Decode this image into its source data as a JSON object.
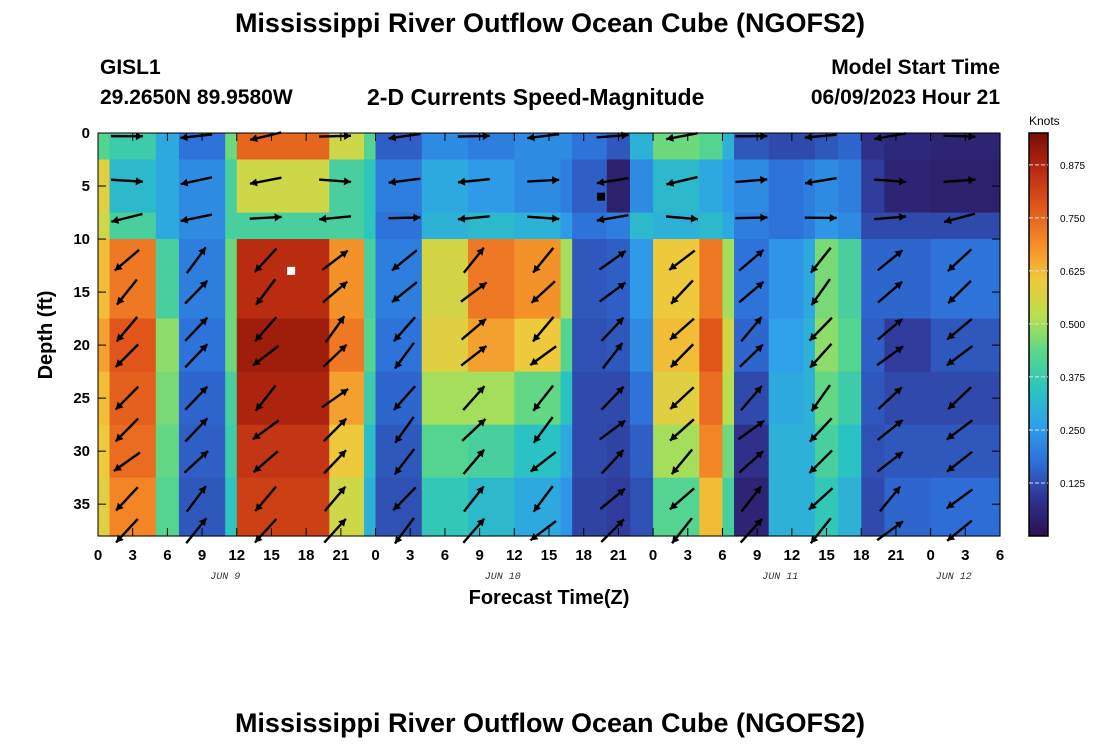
{
  "header": {
    "title": "Mississippi River Outflow Ocean Cube (NGOFS2)",
    "station": "GISL1",
    "coords": "29.2650N  89.9580W",
    "subtitle": "2-D Currents Speed-Magnitude",
    "model_start_label": "Model Start Time",
    "model_start_value": "06/09/2023 Hour 21"
  },
  "footer": {
    "title": "Mississippi River Outflow Ocean Cube (NGOFS2)"
  },
  "chart_data": {
    "type": "heatmap",
    "xlabel": "Forecast Time(Z)",
    "ylabel": "Depth (ft)",
    "x_tick_labels": [
      "0",
      "3",
      "6",
      "9",
      "12",
      "15",
      "18",
      "21",
      "0",
      "3",
      "6",
      "9",
      "12",
      "15",
      "18",
      "21",
      "0",
      "3",
      "6",
      "9",
      "12",
      "15",
      "18",
      "21",
      "0",
      "3",
      "6"
    ],
    "date_labels": [
      {
        "label": "JUN 9",
        "hour_index": 11
      },
      {
        "label": "JUN 10",
        "hour_index": 35
      },
      {
        "label": "JUN 11",
        "hour_index": 59
      },
      {
        "label": "JUN 12",
        "hour_index": 74
      }
    ],
    "x_range_hours": [
      0,
      78
    ],
    "y_tick_labels": [
      "0",
      "5",
      "10",
      "15",
      "20",
      "25",
      "30",
      "35"
    ],
    "ylim_ft": [
      0,
      38
    ],
    "y_inverted": true,
    "colorbar": {
      "unit": "Knots",
      "range": [
        0,
        0.95
      ],
      "ticks": [
        "0.125",
        "0.250",
        "0.375",
        "0.500",
        "0.625",
        "0.750",
        "0.875"
      ],
      "tick_values": [
        0.125,
        0.25,
        0.375,
        0.5,
        0.625,
        0.75,
        0.875
      ],
      "colors": [
        "#2b1050",
        "#30328f",
        "#2e6fd8",
        "#2fa0ea",
        "#2bc4c0",
        "#5ad68a",
        "#b8e04e",
        "#f0c83a",
        "#f58a28",
        "#e0561a",
        "#b82a10",
        "#7a0c05"
      ]
    },
    "speed_columns_knots": [
      {
        "x_start": 0,
        "x_end": 1,
        "values": [
          0.42,
          0.58,
          0.55,
          0.62,
          0.66,
          0.62,
          0.6,
          0.58
        ]
      },
      {
        "x_start": 1,
        "x_end": 5,
        "values": [
          0.38,
          0.32,
          0.4,
          0.72,
          0.78,
          0.76,
          0.74,
          0.7
        ]
      },
      {
        "x_start": 5,
        "x_end": 7,
        "values": [
          0.28,
          0.28,
          0.28,
          0.4,
          0.48,
          0.46,
          0.44,
          0.42
        ]
      },
      {
        "x_start": 7,
        "x_end": 11,
        "values": [
          0.18,
          0.22,
          0.22,
          0.2,
          0.18,
          0.16,
          0.15,
          0.14
        ]
      },
      {
        "x_start": 11,
        "x_end": 12,
        "values": [
          0.45,
          0.4,
          0.4,
          0.45,
          0.45,
          0.4,
          0.38,
          0.35
        ]
      },
      {
        "x_start": 12,
        "x_end": 20,
        "values": [
          0.75,
          0.55,
          0.4,
          0.86,
          0.9,
          0.88,
          0.84,
          0.82
        ]
      },
      {
        "x_start": 20,
        "x_end": 23,
        "values": [
          0.55,
          0.4,
          0.4,
          0.68,
          0.72,
          0.66,
          0.6,
          0.55
        ]
      },
      {
        "x_start": 23,
        "x_end": 24,
        "values": [
          0.42,
          0.35,
          0.35,
          0.4,
          0.42,
          0.38,
          0.33,
          0.3
        ]
      },
      {
        "x_start": 24,
        "x_end": 28,
        "values": [
          0.15,
          0.2,
          0.18,
          0.2,
          0.18,
          0.16,
          0.14,
          0.13
        ]
      },
      {
        "x_start": 28,
        "x_end": 32,
        "values": [
          0.22,
          0.28,
          0.3,
          0.56,
          0.58,
          0.5,
          0.42,
          0.36
        ]
      },
      {
        "x_start": 32,
        "x_end": 36,
        "values": [
          0.2,
          0.25,
          0.32,
          0.72,
          0.66,
          0.5,
          0.4,
          0.32
        ]
      },
      {
        "x_start": 36,
        "x_end": 40,
        "values": [
          0.22,
          0.22,
          0.3,
          0.68,
          0.6,
          0.44,
          0.34,
          0.28
        ]
      },
      {
        "x_start": 40,
        "x_end": 41,
        "values": [
          0.22,
          0.2,
          0.25,
          0.5,
          0.42,
          0.34,
          0.28,
          0.24
        ]
      },
      {
        "x_start": 41,
        "x_end": 44,
        "values": [
          0.18,
          0.15,
          0.18,
          0.14,
          0.13,
          0.12,
          0.12,
          0.11
        ]
      },
      {
        "x_start": 44,
        "x_end": 46,
        "values": [
          0.14,
          0.04,
          0.2,
          0.15,
          0.14,
          0.12,
          0.11,
          0.1
        ]
      },
      {
        "x_start": 46,
        "x_end": 48,
        "values": [
          0.3,
          0.22,
          0.32,
          0.25,
          0.22,
          0.18,
          0.15,
          0.13
        ]
      },
      {
        "x_start": 48,
        "x_end": 52,
        "values": [
          0.45,
          0.32,
          0.3,
          0.6,
          0.62,
          0.58,
          0.5,
          0.42
        ]
      },
      {
        "x_start": 52,
        "x_end": 54,
        "values": [
          0.42,
          0.28,
          0.32,
          0.72,
          0.78,
          0.74,
          0.7,
          0.62
        ]
      },
      {
        "x_start": 54,
        "x_end": 55,
        "values": [
          0.3,
          0.25,
          0.28,
          0.5,
          0.56,
          0.52,
          0.45,
          0.4
        ]
      },
      {
        "x_start": 55,
        "x_end": 58,
        "values": [
          0.14,
          0.22,
          0.2,
          0.18,
          0.16,
          0.12,
          0.08,
          0.05
        ]
      },
      {
        "x_start": 58,
        "x_end": 61,
        "values": [
          0.12,
          0.18,
          0.18,
          0.24,
          0.26,
          0.28,
          0.3,
          0.3
        ]
      },
      {
        "x_start": 61,
        "x_end": 62,
        "values": [
          0.12,
          0.2,
          0.2,
          0.28,
          0.3,
          0.3,
          0.3,
          0.3
        ]
      },
      {
        "x_start": 62,
        "x_end": 64,
        "values": [
          0.14,
          0.22,
          0.24,
          0.46,
          0.48,
          0.44,
          0.4,
          0.36
        ]
      },
      {
        "x_start": 64,
        "x_end": 66,
        "values": [
          0.16,
          0.2,
          0.22,
          0.4,
          0.42,
          0.38,
          0.34,
          0.3
        ]
      },
      {
        "x_start": 66,
        "x_end": 68,
        "values": [
          0.08,
          0.1,
          0.12,
          0.16,
          0.15,
          0.14,
          0.13,
          0.12
        ]
      },
      {
        "x_start": 68,
        "x_end": 72,
        "values": [
          0.06,
          0.05,
          0.12,
          0.16,
          0.1,
          0.12,
          0.14,
          0.16
        ]
      },
      {
        "x_start": 72,
        "x_end": 78,
        "values": [
          0.05,
          0.04,
          0.12,
          0.18,
          0.14,
          0.12,
          0.14,
          0.17
        ]
      }
    ],
    "vector_markers_note": "black arrows show current direction",
    "markers": [
      {
        "type": "square",
        "color": "#ffffff",
        "hour": 16.7,
        "depth_ft": 13
      },
      {
        "type": "square",
        "color": "#000000",
        "hour": 43.5,
        "depth_ft": 6
      }
    ]
  }
}
